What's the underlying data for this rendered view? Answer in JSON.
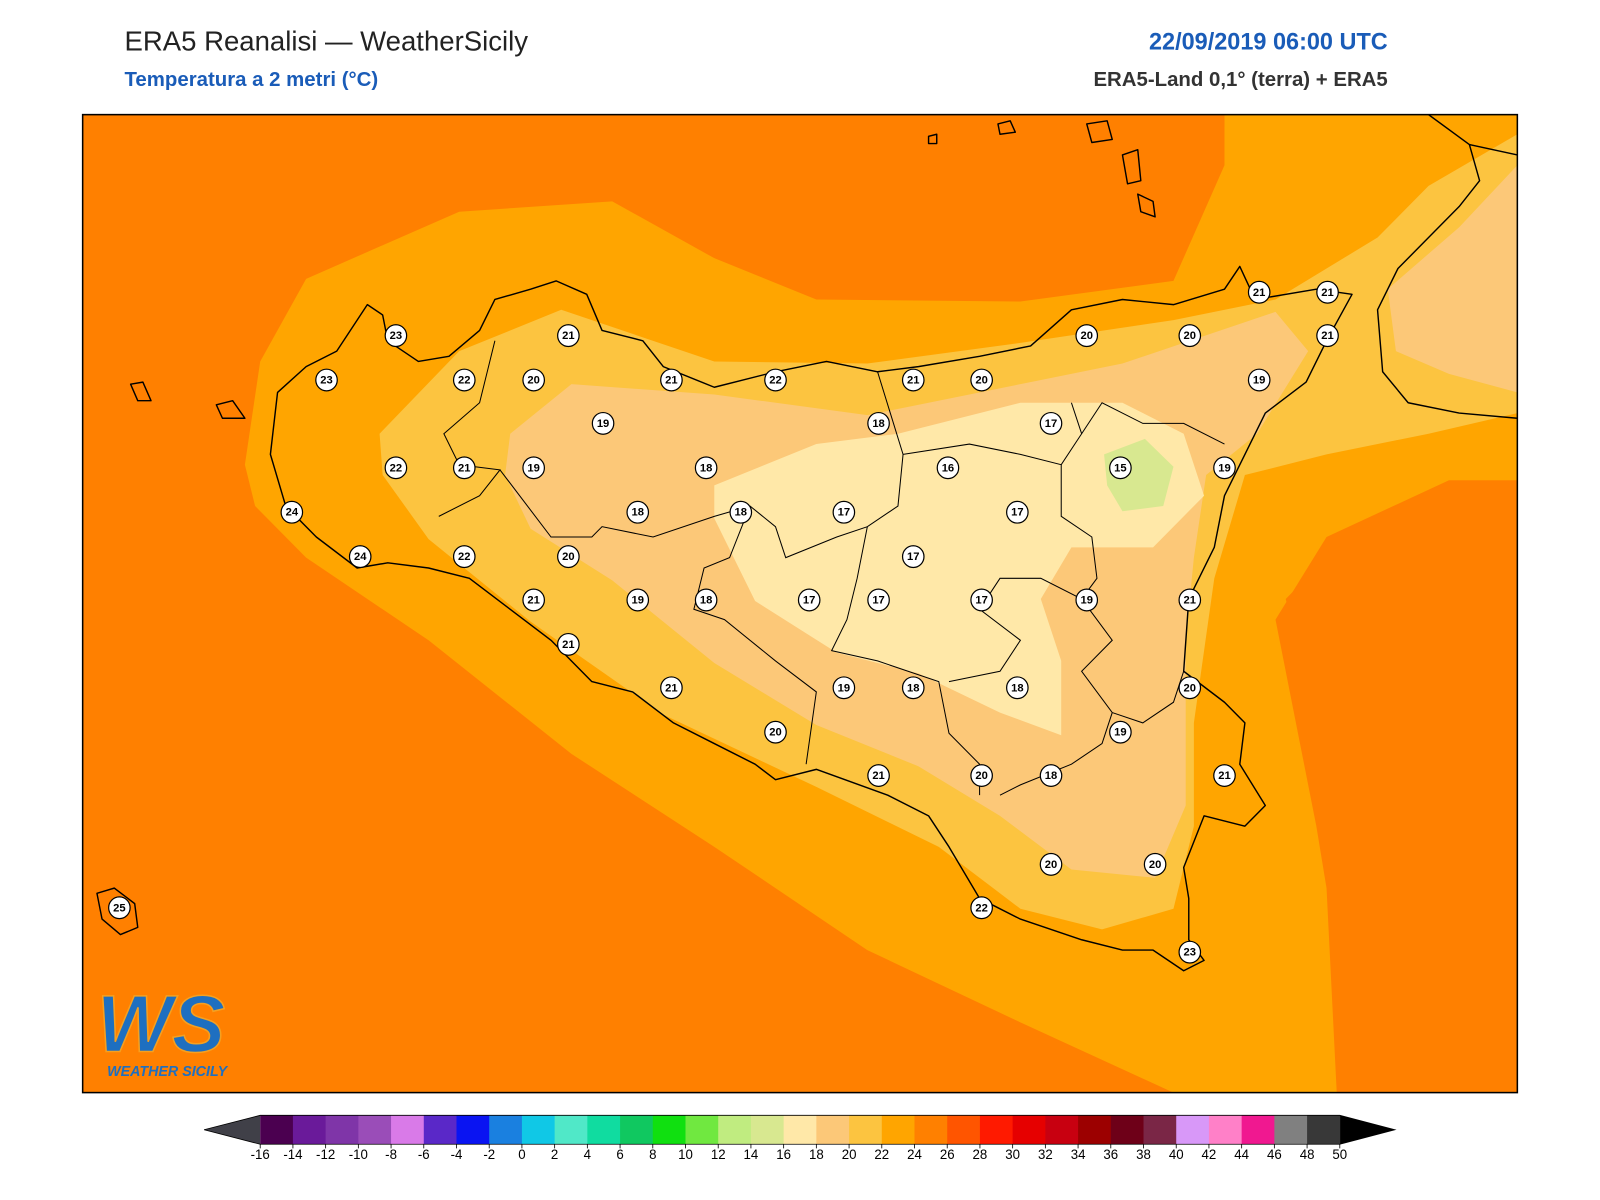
{
  "header": {
    "title": "ERA5 Reanalisi — WeatherSicily",
    "subtitle": "Temperatura a 2 metri (°C)",
    "datetime": "22/09/2019 06:00 UTC",
    "source": "ERA5-Land 0,1° (terra) + ERA5"
  },
  "stations": [
    23,
    23,
    22,
    20,
    21,
    21,
    22,
    21,
    20,
    20,
    20,
    21,
    21,
    21,
    19,
    19,
    18,
    17,
    22,
    21,
    19,
    18,
    16,
    15,
    19,
    24,
    18,
    18,
    17,
    17,
    24,
    22,
    20,
    17,
    21,
    19,
    18,
    17,
    17,
    17,
    19,
    21,
    21,
    21,
    19,
    18,
    18,
    20,
    20,
    19,
    21,
    20,
    18,
    21,
    20,
    20,
    22,
    23,
    25
  ],
  "colorbar": {
    "ticks": [
      -16,
      -14,
      -12,
      -10,
      -8,
      -6,
      -4,
      -2,
      0,
      2,
      4,
      6,
      8,
      10,
      12,
      14,
      16,
      18,
      20,
      22,
      24,
      26,
      28,
      30,
      32,
      34,
      36,
      38,
      40,
      42,
      44,
      46,
      48,
      50
    ],
    "colors": [
      "#4b0050",
      "#6a1a9a",
      "#7f35a8",
      "#9a4db8",
      "#d97ae8",
      "#5a28c8",
      "#0a14f2",
      "#1a80e0",
      "#10c8e6",
      "#50e8c8",
      "#10dca0",
      "#10c860",
      "#10e010",
      "#70e840",
      "#c0ec80",
      "#d8e890",
      "#ffe8a8",
      "#fcc878",
      "#fcc440",
      "#ffa500",
      "#ff8000",
      "#ff5500",
      "#ff1a00",
      "#e60000",
      "#c80010",
      "#9c0000",
      "#6e0018",
      "#7a2646",
      "#d898f8",
      "#ff80c8",
      "#f01890",
      "#808080",
      "#383838"
    ],
    "under_color": "#404048",
    "over_color": "#000000"
  },
  "logo": {
    "mark": "WS",
    "name": "WEATHER SICILY"
  }
}
